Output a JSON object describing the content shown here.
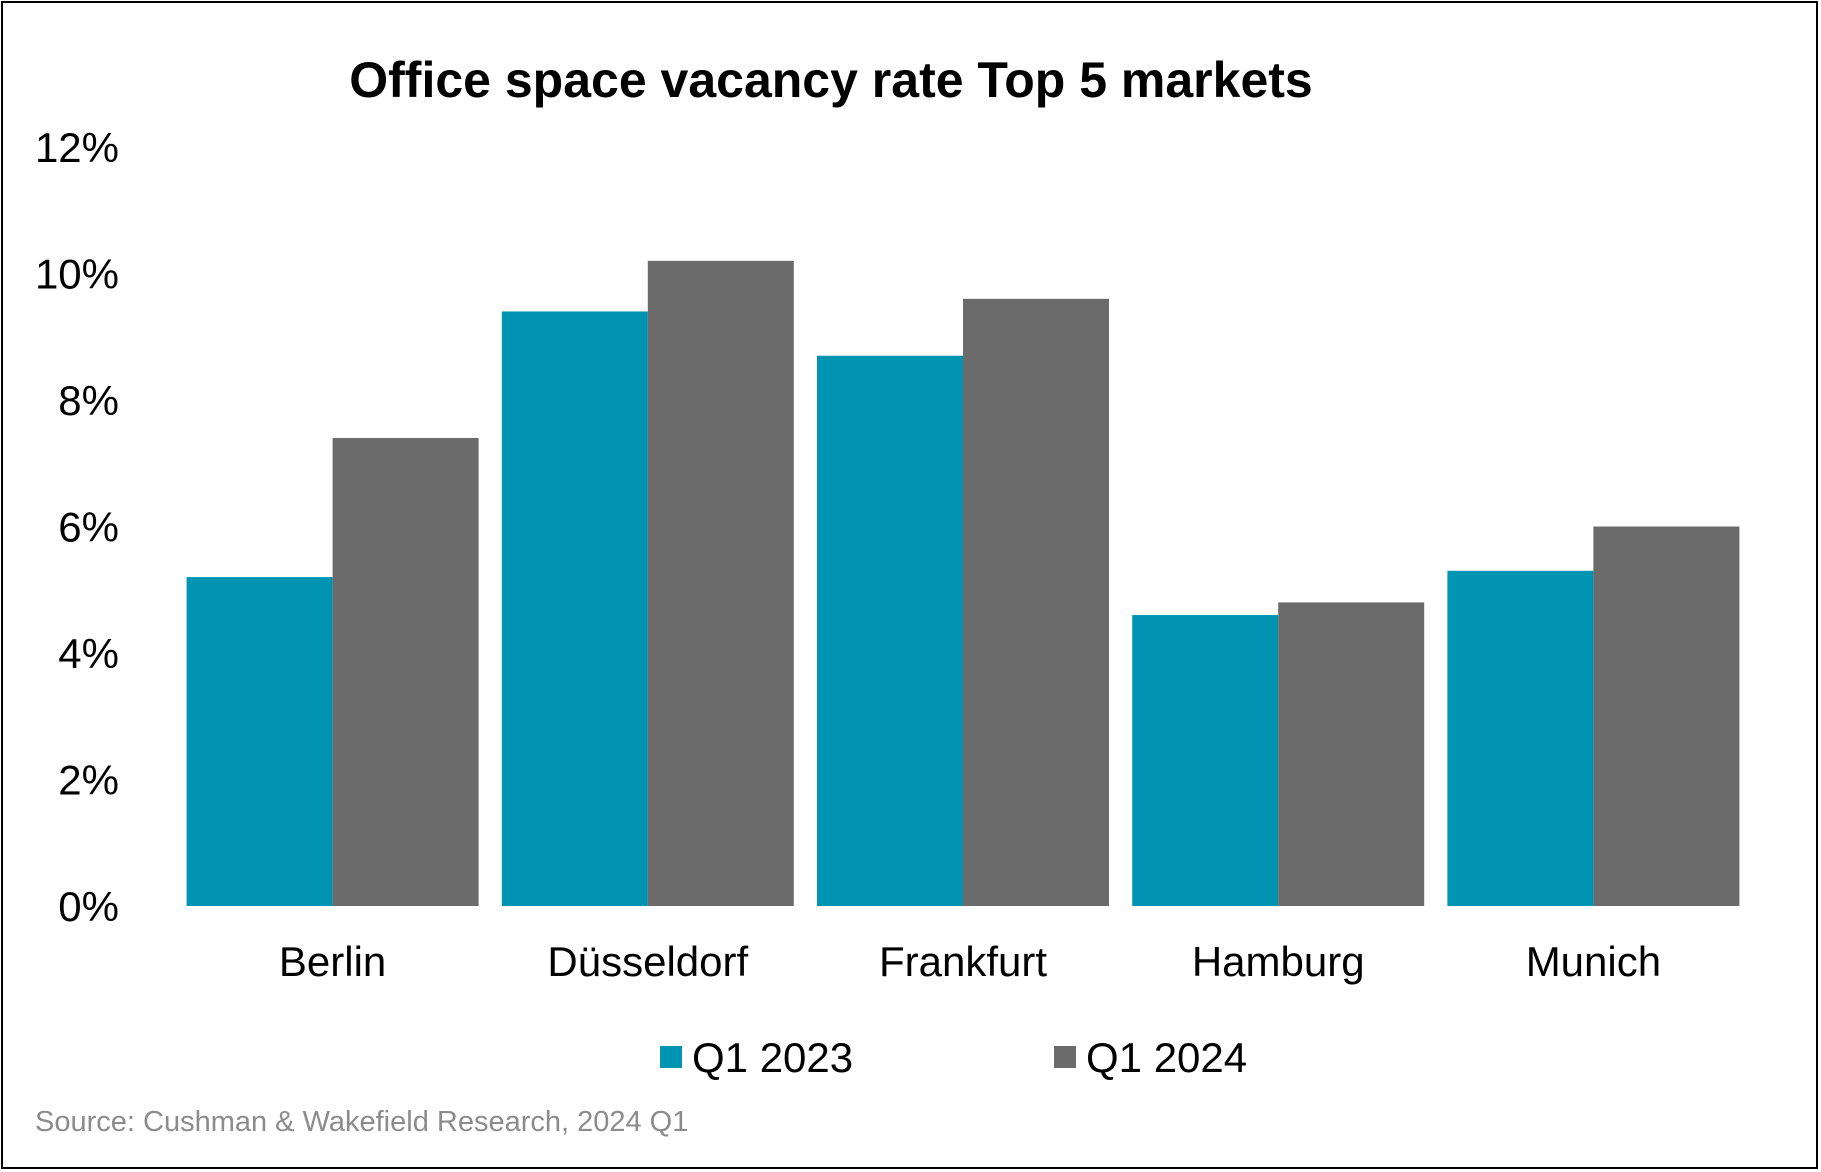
{
  "chart_data": {
    "type": "bar",
    "title": "Office space vacancy rate Top 5 markets",
    "categories": [
      "Berlin",
      "Düsseldorf",
      "Frankfurt",
      "Hamburg",
      "Munich"
    ],
    "series": [
      {
        "name": "Q1 2023",
        "color": "#0094b3",
        "values": [
          5.2,
          9.4,
          8.7,
          4.6,
          5.3
        ]
      },
      {
        "name": "Q1 2024",
        "color": "#6a6b6a",
        "values": [
          7.4,
          10.2,
          9.6,
          4.8,
          6.0
        ]
      }
    ],
    "ylim": [
      0,
      12
    ],
    "yticks": [
      0,
      2,
      4,
      6,
      8,
      10,
      12
    ],
    "ytick_format": "%",
    "grid": false,
    "legend": "bottom",
    "source": "Source: Cushman & Wakefield Research, 2024 Q1"
  }
}
